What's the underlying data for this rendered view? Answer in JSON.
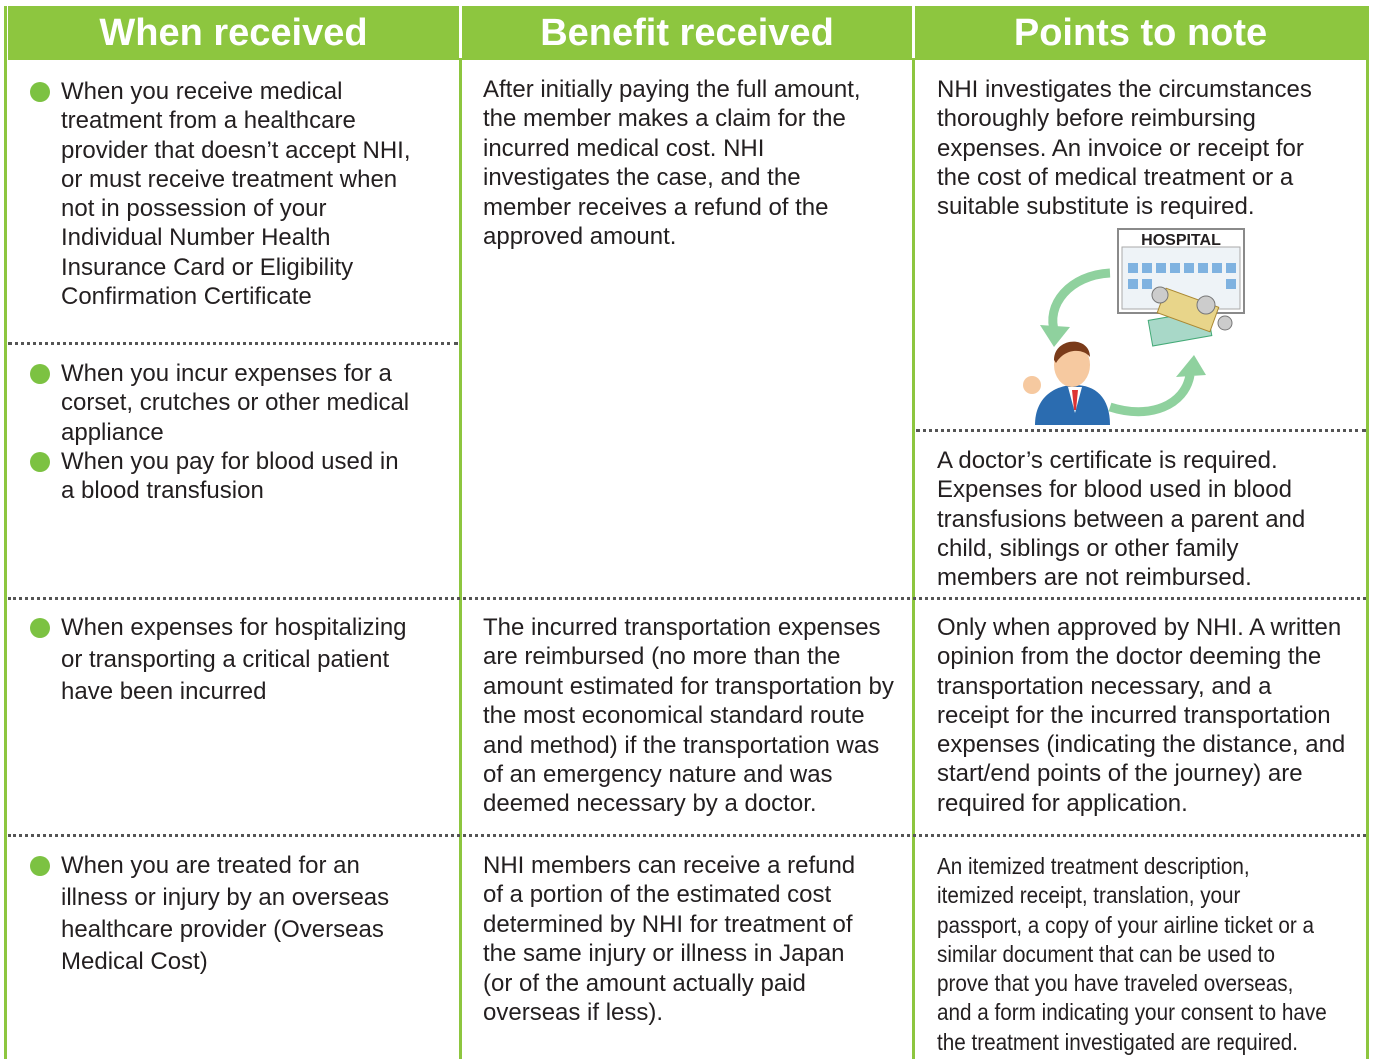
{
  "header": [
    "When received",
    "Benefit received",
    "Points to note"
  ],
  "rows": [
    {
      "when": [
        {
          "lines": [
            "When you receive medical",
            "treatment from a healthcare",
            "provider that doesn’t accept NHI,",
            "or must receive treatment when",
            "not in possession of your",
            "Individual Number Health",
            "Insurance Card or Eligibility",
            "Confirmation Certificate"
          ]
        },
        {
          "lines": [
            "When you incur expenses for a",
            "corset, crutches or other medical",
            "appliance"
          ]
        },
        {
          "lines": [
            "When you pay for blood used in",
            "a blood transfusion"
          ]
        }
      ],
      "benefit": {
        "lines": [
          "After initially paying the full amount,",
          "the member makes a claim for the",
          "incurred medical cost. NHI",
          "investigates the case, and the",
          "member receives a refund of the",
          "approved amount."
        ]
      },
      "notes": [
        {
          "lines": [
            "NHI investigates the circumstances",
            "thoroughly before reimbursing",
            "expenses. An invoice or receipt for",
            "the cost of medical treatment or a",
            "suitable substitute is required."
          ]
        },
        {
          "lines": [
            "A doctor’s certificate is required.",
            "Expenses for blood used in blood",
            "transfusions between a parent and",
            "child, siblings or other family",
            "members are not reimbursed."
          ]
        }
      ]
    },
    {
      "when": [
        {
          "lines": [
            "When expenses for hospitalizing",
            "or transporting a critical patient",
            "have been incurred"
          ]
        }
      ],
      "benefit": {
        "lines": [
          "The incurred transportation expenses",
          "are reimbursed (no more than the",
          "amount estimated for transportation by",
          "the most economical standard route",
          "and method) if the transportation was",
          "of an emergency nature and was",
          "deemed necessary by a doctor."
        ]
      },
      "notes": [
        {
          "lines": [
            "Only when approved by NHI. A written",
            "opinion from the doctor deeming the",
            "transportation necessary, and a",
            "receipt for the incurred transportation",
            "expenses (indicating the distance, and",
            "start/end points of the journey) are",
            "required for application."
          ]
        }
      ]
    },
    {
      "when": [
        {
          "lines": [
            "When you are treated for an",
            "illness or injury by an overseas",
            "healthcare provider (Overseas",
            "Medical Cost)"
          ]
        }
      ],
      "benefit": {
        "lines": [
          "NHI members can receive a refund",
          "of a portion of the estimated cost",
          "determined by NHI for treatment of",
          "the same injury or illness in Japan",
          "(or of the amount actually paid",
          "overseas if less)."
        ]
      },
      "notes": [
        {
          "lines": [
            "An itemized treatment description,",
            "itemized receipt, translation, your",
            "passport, a copy of your airline ticket or a",
            "similar document that can be used to",
            "prove that you have traveled overseas,",
            "and a form indicating your consent to have",
            "the treatment investigated are required."
          ]
        }
      ]
    }
  ],
  "illustration": {
    "label": "HOSPITAL"
  }
}
